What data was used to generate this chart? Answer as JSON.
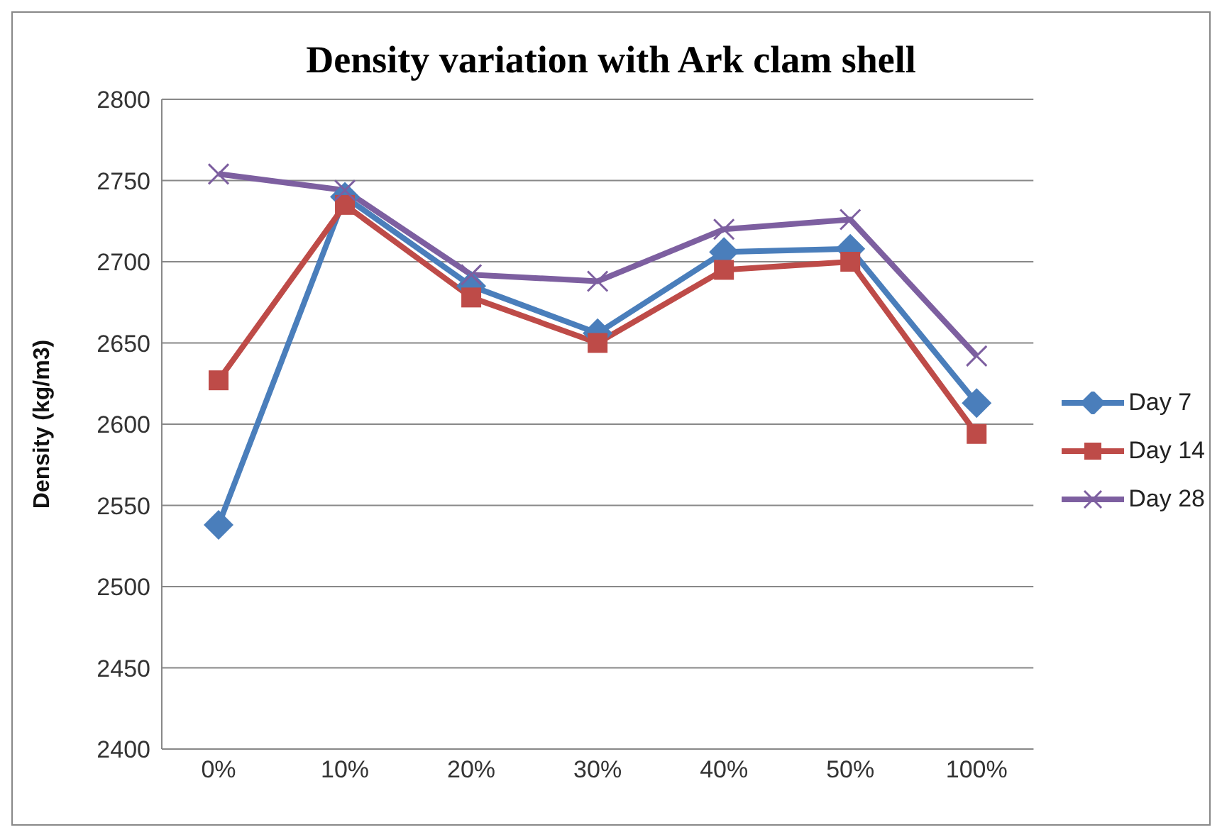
{
  "chart_data": {
    "type": "line",
    "title": "Density variation with Ark clam shell",
    "ylabel": "Density (kg/m3)",
    "categories": [
      "0%",
      "10%",
      "20%",
      "30%",
      "40%",
      "50%",
      "100%"
    ],
    "series": [
      {
        "name": "Day 7",
        "color": "#4a7ebb",
        "marker": "diamond",
        "values": [
          2538,
          2740,
          2685,
          2656,
          2706,
          2708,
          2613
        ]
      },
      {
        "name": "Day 14",
        "color": "#be4b48",
        "marker": "square",
        "values": [
          2627,
          2735,
          2678,
          2650,
          2695,
          2700,
          2594
        ]
      },
      {
        "name": "Day 28",
        "color": "#7d5fa0",
        "marker": "cross",
        "values": [
          2754,
          2744,
          2692,
          2688,
          2720,
          2726,
          2642
        ]
      }
    ],
    "ylim": [
      2400,
      2800
    ],
    "yticks": [
      2400,
      2450,
      2500,
      2550,
      2600,
      2650,
      2700,
      2750,
      2800
    ],
    "grid": "y",
    "legend": "right"
  }
}
